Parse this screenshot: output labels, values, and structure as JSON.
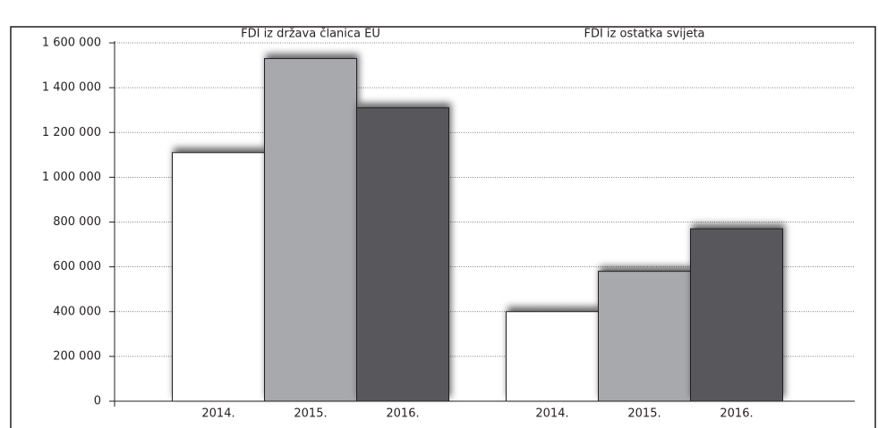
{
  "chart_data": {
    "type": "bar",
    "categories": [
      "FDI iz država članica EU",
      "FDI iz ostatka svijeta"
    ],
    "series": [
      {
        "name": "2014.",
        "color": "#ffffff",
        "values": [
          1110000,
          400000
        ]
      },
      {
        "name": "2015.",
        "color": "#a7a9ac",
        "values": [
          1530000,
          580000
        ]
      },
      {
        "name": "2016.",
        "color": "#58595b",
        "values": [
          1310000,
          770000
        ]
      }
    ],
    "ylim": [
      0,
      1600000
    ],
    "yticks": [
      0,
      {
        "value": 200000,
        "label": "200 000"
      },
      {
        "value": 400000,
        "label": "400 000"
      },
      {
        "value": 600000,
        "label": "600 000"
      },
      {
        "value": 800000,
        "label": "800 000"
      },
      {
        "value": 1000000,
        "label": "1 000 000"
      },
      {
        "value": 1200000,
        "label": "1 200 000"
      },
      {
        "value": 1400000,
        "label": "1 400 000"
      },
      {
        "value": 1600000,
        "label": "1 600 000"
      }
    ],
    "grid": true
  }
}
